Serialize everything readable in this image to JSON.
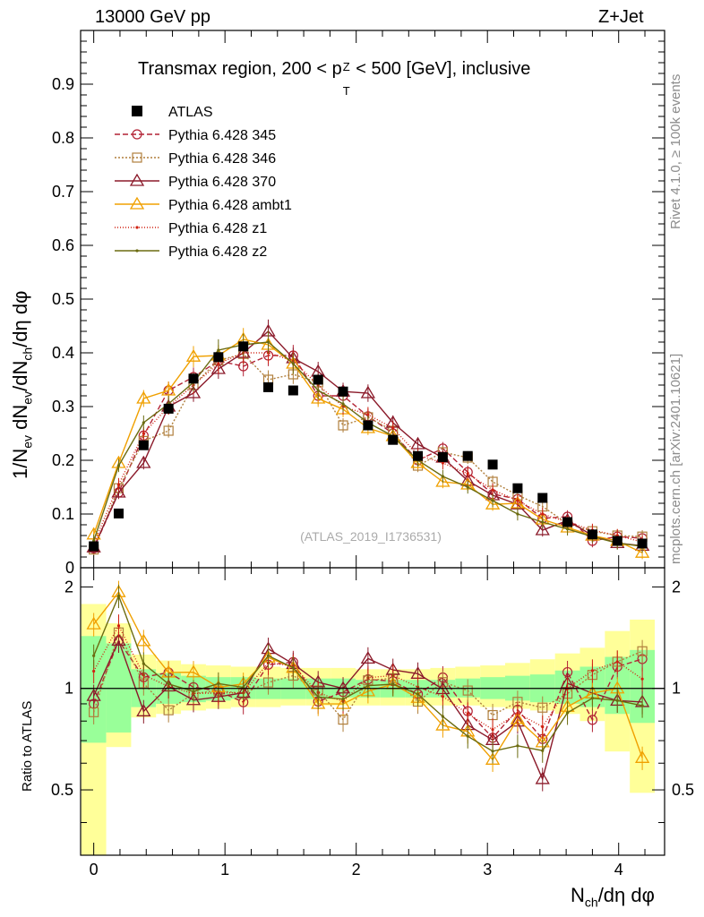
{
  "header": {
    "left": "13000 GeV pp",
    "right": "Z+Jet"
  },
  "side_labels": {
    "rivet": "Rivet 4.1.0, ≥ 100k events",
    "mcplots": "mcplots.cern.ch [arXiv:2401.10621]"
  },
  "chart_data": [
    {
      "type": "scatter",
      "panel": "main",
      "title_parts": {
        "prefix": "Transmax region, 200 < p",
        "sup": "Z",
        "sub": "T",
        "suffix": " < 500 [GeV], inclusive"
      },
      "ylabel": "1/N_ev dN_ev/dN_ch/dη dφ",
      "watermark": "(ATLAS_2019_I1736531)",
      "xlim": [
        -0.1,
        4.35
      ],
      "ylim": [
        0,
        1.0
      ],
      "yticks": [
        0.1,
        0.2,
        0.3,
        0.4,
        0.5,
        0.6,
        0.7,
        0.8,
        0.9
      ],
      "ytick_labels": [
        "0.1",
        "0.2",
        "0.3",
        "0.4",
        "0.5",
        "0.6",
        "0.7",
        "0.8",
        "0.9"
      ],
      "y_bottom_label": "0",
      "x": [
        0,
        0.19,
        0.38,
        0.57,
        0.76,
        0.95,
        1.14,
        1.33,
        1.52,
        1.71,
        1.9,
        2.09,
        2.28,
        2.47,
        2.66,
        2.85,
        3.04,
        3.23,
        3.42,
        3.61,
        3.8,
        3.99,
        4.18
      ],
      "data": {
        "name": "ATLAS",
        "values": [
          0.04,
          0.101,
          0.228,
          0.296,
          0.352,
          0.392,
          0.412,
          0.336,
          0.33,
          0.35,
          0.328,
          0.265,
          0.238,
          0.208,
          0.206,
          0.208,
          0.192,
          0.148,
          0.13,
          0.085,
          0.062,
          0.05,
          0.045
        ]
      },
      "series": [
        {
          "name": "Pythia 6.428 345",
          "color": "#b22234",
          "dash": "6,3",
          "marker": "circle",
          "values": [
            0.036,
            0.14,
            0.246,
            0.33,
            0.355,
            0.385,
            0.375,
            0.395,
            0.395,
            0.32,
            0.32,
            0.282,
            0.25,
            0.2,
            0.222,
            0.178,
            0.137,
            0.128,
            0.092,
            0.095,
            0.05,
            0.058,
            0.055
          ]
        },
        {
          "name": "Pythia 6.428 346",
          "color": "#b07f3c",
          "dash": "2,2",
          "marker": "square",
          "values": [
            0.034,
            0.148,
            0.236,
            0.255,
            0.34,
            0.386,
            0.398,
            0.35,
            0.36,
            0.345,
            0.265,
            0.28,
            0.255,
            0.19,
            0.215,
            0.205,
            0.16,
            0.135,
            0.114,
            0.082,
            0.068,
            0.06,
            0.058
          ]
        },
        {
          "name": "Pythia 6.428 370",
          "color": "#8b1a2a",
          "dash": "",
          "marker": "triangle",
          "values": [
            0.038,
            0.14,
            0.195,
            0.3,
            0.325,
            0.37,
            0.4,
            0.44,
            0.39,
            0.365,
            0.328,
            0.325,
            0.27,
            0.23,
            0.205,
            0.162,
            0.135,
            0.118,
            0.07,
            0.088,
            0.06,
            0.046,
            0.041
          ]
        },
        {
          "name": "Pythia 6.428 ambt1",
          "color": "#f0a000",
          "dash": "",
          "marker": "triangle",
          "values": [
            0.062,
            0.195,
            0.315,
            0.33,
            0.393,
            0.395,
            0.425,
            0.415,
            0.38,
            0.315,
            0.295,
            0.26,
            0.245,
            0.195,
            0.16,
            0.155,
            0.118,
            0.12,
            0.09,
            0.075,
            0.06,
            0.05,
            0.028
          ]
        },
        {
          "name": "Pythia 6.428 z1",
          "color": "#d02010",
          "dash": "1,2",
          "marker": "dot",
          "values": [
            0.045,
            0.155,
            0.25,
            0.3,
            0.34,
            0.38,
            0.4,
            0.4,
            0.385,
            0.34,
            0.3,
            0.285,
            0.26,
            0.21,
            0.195,
            0.175,
            0.145,
            0.125,
            0.1,
            0.085,
            0.07,
            0.06,
            0.048
          ]
        },
        {
          "name": "Pythia 6.428 z2",
          "color": "#6b6b10",
          "dash": "",
          "marker": "dot",
          "values": [
            0.05,
            0.19,
            0.27,
            0.305,
            0.345,
            0.405,
            0.415,
            0.42,
            0.38,
            0.33,
            0.305,
            0.27,
            0.245,
            0.2,
            0.17,
            0.15,
            0.125,
            0.1,
            0.085,
            0.072,
            0.058,
            0.046,
            0.04
          ]
        }
      ]
    },
    {
      "type": "scatter",
      "panel": "ratio",
      "ylabel": "Ratio to ATLAS",
      "xlabel": "N_ch/dη dφ",
      "xlim": [
        -0.1,
        4.35
      ],
      "ylim": [
        0.32,
        2.28
      ],
      "ytick_labels": [
        "0.5",
        "1",
        "2"
      ],
      "yticks": [
        0.5,
        1,
        2
      ],
      "xtick_labels": [
        "0",
        "1",
        "2",
        "3",
        "4"
      ],
      "xticks": [
        0,
        1,
        2,
        3,
        4
      ],
      "band_yellow_lo": [
        0.3,
        0.67,
        0.82,
        0.84,
        0.86,
        0.87,
        0.88,
        0.88,
        0.89,
        0.89,
        0.89,
        0.89,
        0.89,
        0.89,
        0.89,
        0.89,
        0.88,
        0.87,
        0.86,
        0.84,
        0.8,
        0.65,
        0.49
      ],
      "band_yellow_hi": [
        1.78,
        1.56,
        1.26,
        1.21,
        1.18,
        1.17,
        1.16,
        1.16,
        1.15,
        1.15,
        1.15,
        1.14,
        1.14,
        1.14,
        1.15,
        1.16,
        1.17,
        1.19,
        1.22,
        1.27,
        1.32,
        1.48,
        1.6
      ],
      "band_green_lo": [
        0.69,
        0.74,
        0.88,
        0.9,
        0.91,
        0.92,
        0.93,
        0.93,
        0.93,
        0.93,
        0.94,
        0.94,
        0.94,
        0.94,
        0.94,
        0.94,
        0.93,
        0.92,
        0.91,
        0.9,
        0.88,
        0.84,
        0.79
      ],
      "band_green_hi": [
        1.43,
        1.36,
        1.14,
        1.11,
        1.09,
        1.08,
        1.08,
        1.07,
        1.07,
        1.07,
        1.07,
        1.06,
        1.06,
        1.06,
        1.06,
        1.07,
        1.08,
        1.09,
        1.1,
        1.13,
        1.16,
        1.24,
        1.3
      ]
    }
  ]
}
